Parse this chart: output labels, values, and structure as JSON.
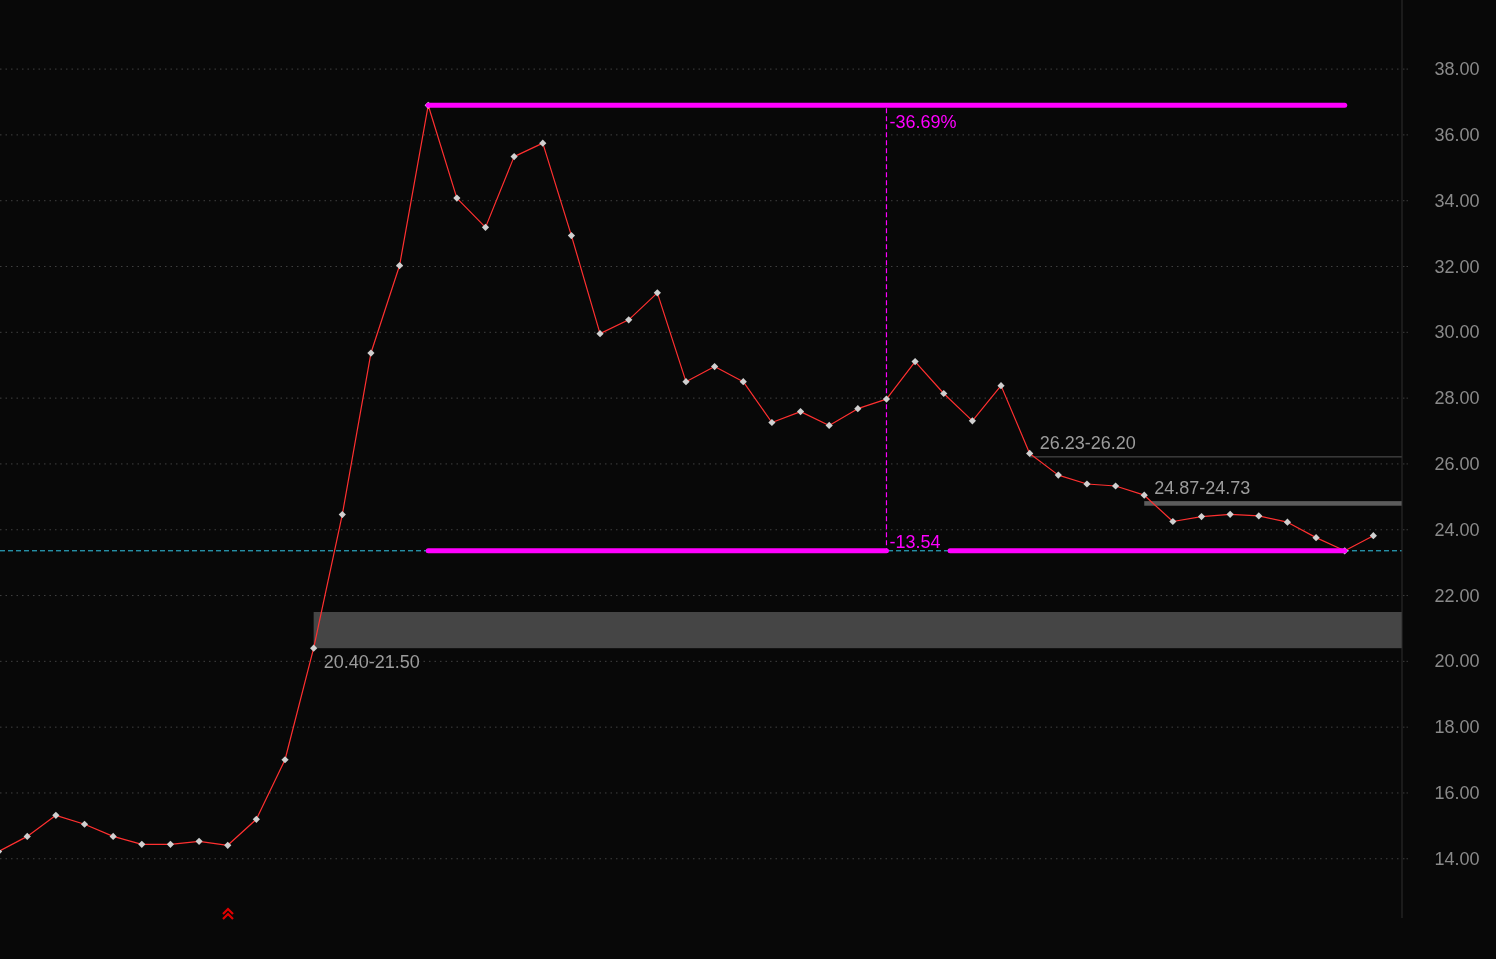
{
  "chart_data": {
    "type": "line",
    "categories": [
      null,
      null,
      null,
      null,
      null,
      null,
      null,
      null,
      null,
      null,
      null,
      null,
      null,
      null,
      null,
      null,
      null,
      null,
      null,
      null,
      null,
      null,
      null,
      null,
      null,
      null,
      null,
      null,
      null,
      null,
      null,
      null,
      null,
      null,
      null,
      null,
      null,
      null,
      null,
      null,
      null,
      null,
      null,
      null,
      null,
      null,
      null,
      null,
      null
    ],
    "series": [
      {
        "color": "#ff3030",
        "values": [
          14.22,
          14.68,
          15.32,
          15.05,
          14.68,
          14.44,
          14.44,
          14.53,
          14.41,
          15.2,
          17.01,
          20.4,
          24.46,
          29.37,
          32.03,
          36.9,
          34.08,
          33.19,
          35.34,
          35.75,
          32.94,
          29.96,
          30.38,
          31.2,
          28.5,
          28.96,
          28.5,
          27.26,
          27.59,
          27.17,
          27.68,
          27.97,
          29.11,
          28.14,
          27.31,
          28.38,
          26.32,
          25.66,
          25.39,
          25.33,
          25.05,
          24.25,
          24.4,
          24.47,
          24.42,
          24.23,
          23.76,
          23.36,
          23.82
        ]
      }
    ],
    "ylim": [
      12.2,
      40.1
    ],
    "yticks": [
      {
        "value": 14,
        "label": "14.00"
      },
      {
        "value": 16,
        "label": "16.00"
      },
      {
        "value": 18,
        "label": "18.00"
      },
      {
        "value": 20,
        "label": "20.00"
      },
      {
        "value": 22,
        "label": "22.00"
      },
      {
        "value": 24,
        "label": "24.00"
      },
      {
        "value": 26,
        "label": "26.00"
      },
      {
        "value": 28,
        "label": "28.00"
      },
      {
        "value": 30,
        "label": "30.00"
      },
      {
        "value": 32,
        "label": "32.00"
      },
      {
        "value": 34,
        "label": "34.00"
      },
      {
        "value": 36,
        "label": "36.00"
      },
      {
        "value": 38,
        "label": "38.00"
      }
    ],
    "grid": "y",
    "tick_labels": "y",
    "marker": "diamond",
    "line_style": "solid",
    "bands": [
      {
        "axis": "y",
        "from": 20.4,
        "to": 21.5,
        "label": "20.40-21.50",
        "color": "#454545"
      },
      {
        "axis": "y",
        "from": 26.2,
        "to": 26.23,
        "label": "26.23-26.20",
        "color": "#555555"
      },
      {
        "axis": "y",
        "from": 24.73,
        "to": 24.87,
        "label": "24.87-24.73",
        "color": "#5c5c5c"
      }
    ],
    "ref_lines": [
      {
        "axis": "y",
        "value": 36.9,
        "color": "#ff00ff"
      },
      {
        "axis": "y",
        "value": 23.36,
        "color": "#ff00ff"
      },
      {
        "axis": "y",
        "value": 23.36,
        "color": "#33c8e8",
        "line_style": "dashed"
      }
    ],
    "annotations": [
      {
        "text": "-36.69%",
        "y": 36.9
      },
      {
        "text": "-13.54",
        "y": 23.36
      }
    ]
  }
}
